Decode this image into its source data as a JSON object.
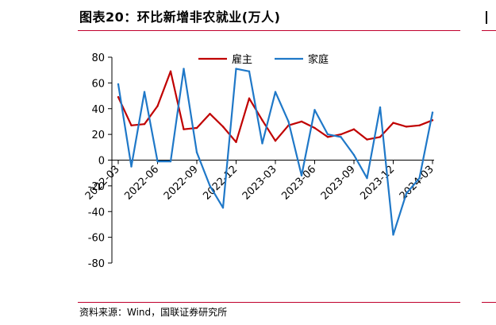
{
  "figure": {
    "title": "图表20：环比新增非农就业(万人)",
    "source": "资料来源：Wind，国联证券研究所"
  },
  "chart_data": {
    "type": "line",
    "title": "图表20：环比新增非农就业(万人)",
    "xlabel": "",
    "ylabel": "",
    "ylim": [
      -80,
      80
    ],
    "yticks": [
      -80,
      -60,
      -40,
      -20,
      0,
      20,
      40,
      60,
      80
    ],
    "grid": false,
    "legend_position": "top-center",
    "x": [
      "2022-03",
      "2022-04",
      "2022-05",
      "2022-06",
      "2022-07",
      "2022-08",
      "2022-09",
      "2022-10",
      "2022-11",
      "2022-12",
      "2023-01",
      "2023-02",
      "2023-03",
      "2023-04",
      "2023-05",
      "2023-06",
      "2023-07",
      "2023-08",
      "2023-09",
      "2023-10",
      "2023-11",
      "2023-12",
      "2024-01",
      "2024-02",
      "2024-03"
    ],
    "xtick_labels": [
      "2022-03",
      "2022-06",
      "2022-09",
      "2022-12",
      "2023-03",
      "2023-06",
      "2023-09",
      "2023-12",
      "2024-03"
    ],
    "series": [
      {
        "name": "雇主",
        "color": "#c00000",
        "values": [
          49,
          27,
          28,
          42,
          69,
          24,
          25,
          36,
          26,
          14,
          48,
          31,
          15,
          27,
          30,
          25,
          18,
          20,
          24,
          16,
          18,
          29,
          26,
          27,
          31
        ]
      },
      {
        "name": "家庭",
        "color": "#1f78c8",
        "values": [
          59,
          -5,
          53,
          -1,
          -1,
          71,
          6,
          -20,
          -37,
          71,
          69,
          13,
          53,
          30,
          -12,
          39,
          20,
          18,
          4,
          -14,
          41,
          -58,
          -26,
          -14,
          37
        ]
      }
    ]
  }
}
